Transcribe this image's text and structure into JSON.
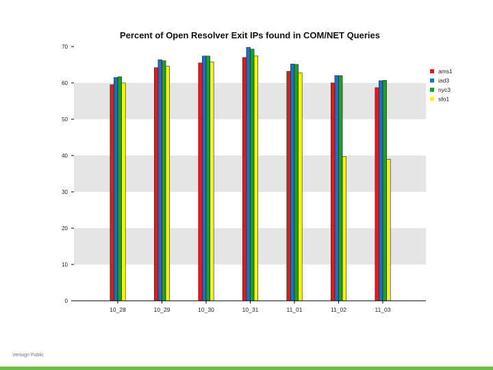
{
  "footer": {
    "text": "Verisign Public"
  },
  "colors": {
    "footer_bar": "#6cbf4a",
    "band": "#e5e5e5",
    "axis": "#000000"
  },
  "chart_data": {
    "type": "bar",
    "title": "Percent of Open Resolver Exit IPs found in COM/NET Queries",
    "xlabel": "",
    "ylabel": "",
    "categories": [
      "10_28",
      "10_29",
      "10_30",
      "10_31",
      "11_01",
      "11_02",
      "11_03"
    ],
    "ylim": [
      0,
      70
    ],
    "yticks": [
      0,
      10,
      20,
      30,
      40,
      50,
      60,
      70
    ],
    "grid": "alternating horizontal bands",
    "legend_position": "right",
    "series": [
      {
        "name": "ams1",
        "color": "#dd1c1c",
        "values": [
          59.5,
          64.2,
          65.5,
          67.0,
          63.2,
          60.0,
          58.7
        ]
      },
      {
        "name": "iad3",
        "color": "#1f6fbf",
        "values": [
          61.5,
          66.4,
          67.4,
          69.8,
          65.2,
          62.0,
          60.6
        ]
      },
      {
        "name": "nyc3",
        "color": "#1e9e2e",
        "values": [
          61.7,
          66.1,
          67.4,
          69.3,
          65.1,
          62.0,
          60.7
        ]
      },
      {
        "name": "sfo1",
        "color": "#f4f40c",
        "values": [
          60.0,
          64.6,
          65.8,
          67.4,
          62.8,
          39.7,
          39.0
        ]
      }
    ]
  }
}
